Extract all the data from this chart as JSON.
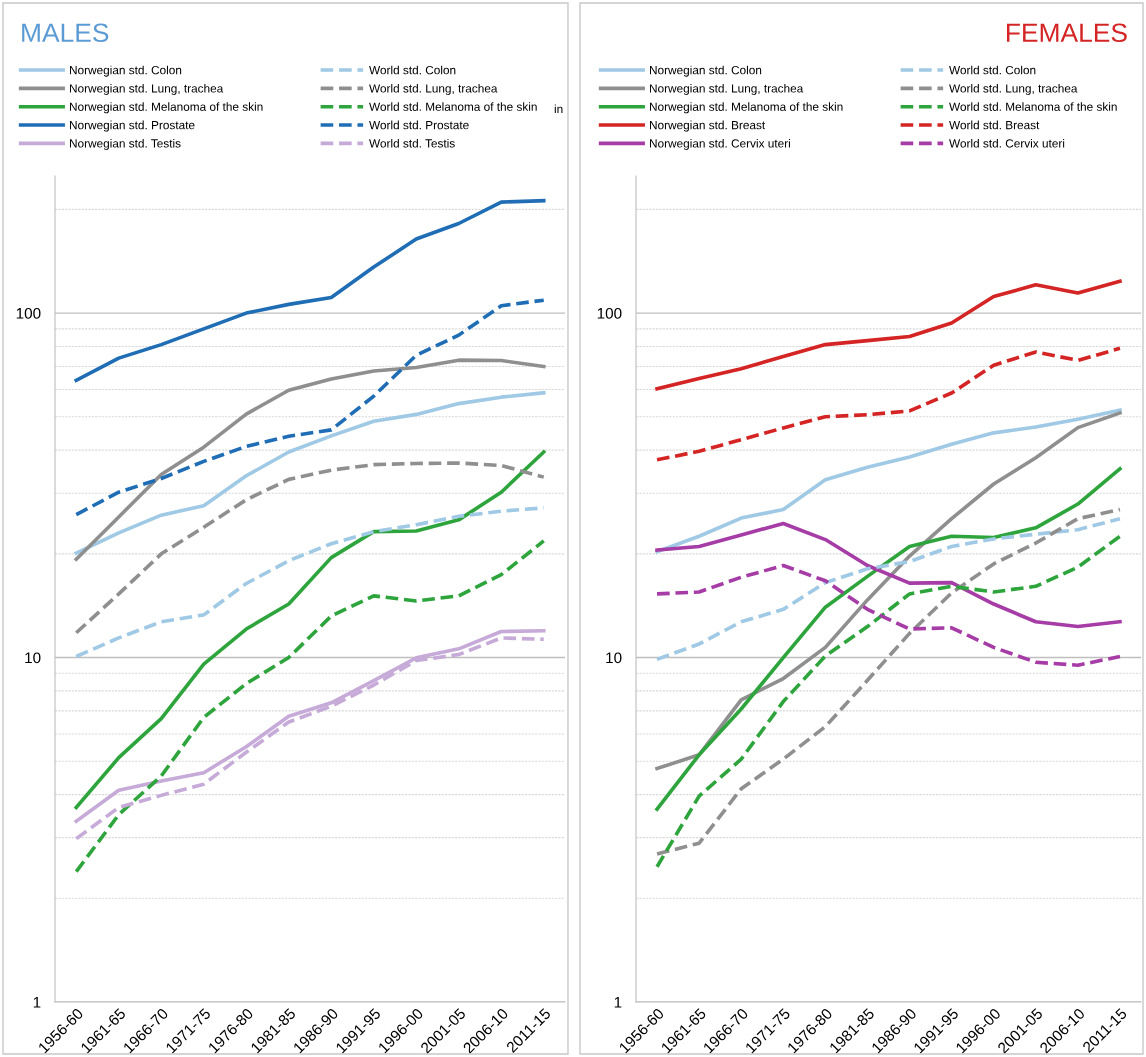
{
  "chart_data": [
    {
      "type": "line",
      "title": "MALES",
      "categories": [
        "1956-60",
        "1961-65",
        "1966-70",
        "1971-75",
        "1976-80",
        "1981-85",
        "1986-90",
        "1991-95",
        "1996-00",
        "2001-05",
        "2006-10",
        "2011-15"
      ],
      "log": true,
      "ylim": [
        1,
        250
      ],
      "yticks": [
        1,
        10,
        100
      ],
      "grid": true,
      "legend": "top",
      "marker": "none",
      "annotations": [
        "in"
      ],
      "series": [
        {
          "name": "Norwegian std. Colon",
          "color": "#9fc9e4",
          "line_style": "solid",
          "values": [
            20.1,
            23.0,
            25.9,
            27.6,
            33.7,
            39.5,
            44.0,
            48.5,
            50.8,
            54.6,
            57.0,
            58.7
          ]
        },
        {
          "name": "Norwegian std. Lung, trachea",
          "color": "#8f8f8f",
          "line_style": "solid",
          "values": [
            19.3,
            25.6,
            34.0,
            40.8,
            50.9,
            59.7,
            64.4,
            67.9,
            69.5,
            73.0,
            72.8,
            70.0
          ]
        },
        {
          "name": "Norwegian std. Melanoma of the skin",
          "color": "#2ea43c",
          "line_style": "solid",
          "values": [
            3.67,
            5.12,
            6.65,
            9.57,
            12.1,
            14.3,
            19.5,
            23.2,
            23.3,
            25.1,
            30.2,
            39.5
          ]
        },
        {
          "name": "Norwegian std. Prostate",
          "color": "#1f6db5",
          "line_style": "solid",
          "values": [
            63.8,
            74,
            81,
            90,
            100,
            106,
            111,
            136,
            164,
            182,
            210,
            212
          ]
        },
        {
          "name": "Norwegian std. Testis",
          "color": "#c6aad8",
          "line_style": "solid",
          "values": [
            3.35,
            4.12,
            4.38,
            4.63,
            5.51,
            6.75,
            7.39,
            8.57,
            9.98,
            10.6,
            11.9,
            11.96
          ]
        },
        {
          "name": "World std. Colon",
          "color": "#9fc9e4",
          "line_style": "dashed",
          "values": [
            10.07,
            11.4,
            12.7,
            13.3,
            16.4,
            19.1,
            21.4,
            23.2,
            24.3,
            25.7,
            26.6,
            27.2
          ]
        },
        {
          "name": "World std. Lung, trachea",
          "color": "#8f8f8f",
          "line_style": "dashed",
          "values": [
            11.8,
            15.3,
            20.0,
            23.9,
            28.7,
            32.9,
            35.0,
            36.3,
            36.6,
            36.7,
            36.1,
            33.4
          ]
        },
        {
          "name": "World std. Melanoma of the skin",
          "color": "#2ea43c",
          "line_style": "dashed",
          "values": [
            2.39,
            3.5,
            4.53,
            6.7,
            8.4,
            10.0,
            13.2,
            15.1,
            14.6,
            15.1,
            17.4,
            21.8
          ]
        },
        {
          "name": "World std. Prostate",
          "color": "#1f6db5",
          "line_style": "dashed",
          "values": [
            26.0,
            30.2,
            33.1,
            37.1,
            41.0,
            43.9,
            45.8,
            57.4,
            75.4,
            86.3,
            105,
            109
          ]
        },
        {
          "name": "World std. Testis",
          "color": "#c6aad8",
          "line_style": "dashed",
          "values": [
            2.98,
            3.67,
            3.98,
            4.29,
            5.31,
            6.5,
            7.22,
            8.32,
            9.8,
            10.2,
            11.4,
            11.3
          ]
        }
      ]
    },
    {
      "type": "line",
      "title": "FEMALES",
      "categories": [
        "1956-60",
        "1961-65",
        "1966-70",
        "1971-75",
        "1976-80",
        "1981-85",
        "1986-90",
        "1991-95",
        "1996-00",
        "2001-05",
        "2006-10",
        "2011-15"
      ],
      "log": true,
      "ylim": [
        1,
        250
      ],
      "yticks": [
        1,
        10,
        100
      ],
      "grid": true,
      "legend": "top",
      "marker": "none",
      "series": [
        {
          "name": "Norwegian std. Colon",
          "color": "#9fc9e4",
          "line_style": "solid",
          "values": [
            20.3,
            22.5,
            25.4,
            26.9,
            32.8,
            35.7,
            38.2,
            41.6,
            44.9,
            46.7,
            49.2,
            52.3
          ]
        },
        {
          "name": "Norwegian std. Lung, trachea",
          "color": "#8f8f8f",
          "line_style": "solid",
          "values": [
            4.76,
            5.22,
            7.54,
            8.69,
            10.7,
            14.7,
            19.7,
            25.3,
            31.9,
            38.0,
            46.5,
            51.3
          ]
        },
        {
          "name": "Norwegian std. Melanoma of the skin",
          "color": "#2ea43c",
          "line_style": "solid",
          "values": [
            3.63,
            5.22,
            7.09,
            10.0,
            14.0,
            17.2,
            21.0,
            22.5,
            22.3,
            23.8,
            27.9,
            35.3
          ]
        },
        {
          "name": "Norwegian std. Breast",
          "color": "#d42424",
          "line_style": "solid",
          "values": [
            60.3,
            64.6,
            68.9,
            74.8,
            81.0,
            83.2,
            85.5,
            93.6,
            111.7,
            120.8,
            114.4,
            123.8
          ]
        },
        {
          "name": "Norwegian std. Cervix uteri",
          "color": "#a63ca6",
          "line_style": "solid",
          "values": [
            20.5,
            21.0,
            22.7,
            24.5,
            22.0,
            18.5,
            16.45,
            16.5,
            14.3,
            12.7,
            12.3,
            12.7
          ]
        },
        {
          "name": "World std. Colon",
          "color": "#9fc9e4",
          "line_style": "dashed",
          "values": [
            9.88,
            10.95,
            12.7,
            13.8,
            16.5,
            18.1,
            19.0,
            21.0,
            22.1,
            22.8,
            23.5,
            25.3
          ]
        },
        {
          "name": "World std. Lung, trachea",
          "color": "#8f8f8f",
          "line_style": "dashed",
          "values": [
            2.69,
            2.89,
            4.16,
            5.07,
            6.3,
            8.59,
            11.75,
            15.4,
            18.7,
            21.5,
            25.3,
            26.9
          ]
        },
        {
          "name": "World std. Melanoma of the skin",
          "color": "#2ea43c",
          "line_style": "dashed",
          "values": [
            2.47,
            3.96,
            5.07,
            7.45,
            10.1,
            12.3,
            15.3,
            16.1,
            15.5,
            16.1,
            18.3,
            22.5
          ]
        },
        {
          "name": "World std. Breast",
          "color": "#d42424",
          "line_style": "dashed",
          "values": [
            37.5,
            39.7,
            42.9,
            46.4,
            50.0,
            50.7,
            52.0,
            58.6,
            70.6,
            77.1,
            72.9,
            79.0
          ]
        },
        {
          "name": "World std. Cervix uteri",
          "color": "#a63ca6",
          "line_style": "dashed",
          "values": [
            15.3,
            15.5,
            17.1,
            18.5,
            16.7,
            13.8,
            12.1,
            12.2,
            10.7,
            9.69,
            9.5,
            10.07
          ]
        }
      ]
    }
  ]
}
